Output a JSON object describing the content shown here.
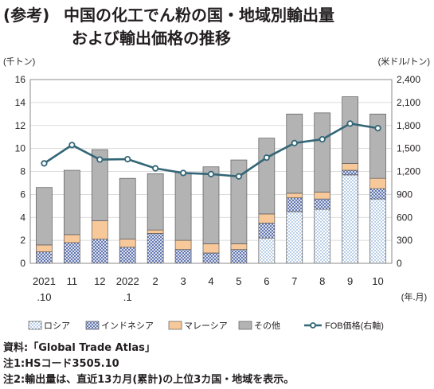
{
  "header": {
    "label": "(参考)",
    "title": "中国の化工でん粉の国・地域別輸出量",
    "subtitle": "および輸出価格の推移"
  },
  "chart_data": {
    "type": "bar",
    "stacked": true,
    "categories": [
      "2021 .10",
      "11",
      "12",
      "2022 .1",
      "2",
      "3",
      "4",
      "5",
      "6",
      "7",
      "8",
      "9",
      "10"
    ],
    "x_tick_labels": [
      {
        "top": "2021",
        "bottom": ".10"
      },
      {
        "top": "11",
        "bottom": ""
      },
      {
        "top": "12",
        "bottom": ""
      },
      {
        "top": "2022",
        "bottom": ".1"
      },
      {
        "top": "2",
        "bottom": ""
      },
      {
        "top": "3",
        "bottom": ""
      },
      {
        "top": "4",
        "bottom": ""
      },
      {
        "top": "5",
        "bottom": ""
      },
      {
        "top": "6",
        "bottom": ""
      },
      {
        "top": "7",
        "bottom": ""
      },
      {
        "top": "8",
        "bottom": ""
      },
      {
        "top": "9",
        "bottom": ""
      },
      {
        "top": "10",
        "bottom": ""
      }
    ],
    "xlabel": "(年.月)",
    "ylabel_left": "(千トン)",
    "ylabel_right": "(米ドル/トン)",
    "ylim_left": [
      0,
      16
    ],
    "yticks_left": [
      "0",
      "2",
      "4",
      "6",
      "8",
      "10",
      "12",
      "14",
      "16"
    ],
    "ylim_right": [
      0,
      2400
    ],
    "yticks_right": [
      "0",
      "300",
      "600",
      "900",
      "1,200",
      "1,500",
      "1,800",
      "2,100",
      "2,400"
    ],
    "grid": true,
    "legend_position": "bottom",
    "series": [
      {
        "name": "ロシア",
        "pattern": "dots",
        "color": "#5a8fc8",
        "values": [
          0.0,
          0.0,
          0.0,
          0.0,
          0.0,
          0.0,
          0.0,
          0.0,
          2.2,
          4.5,
          4.7,
          7.7,
          5.6
        ]
      },
      {
        "name": "インドネシア",
        "pattern": "crosshatch",
        "color": "#5068a8",
        "values": [
          1.0,
          1.8,
          2.1,
          1.4,
          2.6,
          1.2,
          0.9,
          1.2,
          1.3,
          1.2,
          0.9,
          0.4,
          0.9
        ]
      },
      {
        "name": "マレーシア",
        "pattern": "solid",
        "color": "#f7c89a",
        "values": [
          0.6,
          0.7,
          1.6,
          0.7,
          0.3,
          0.8,
          0.8,
          0.5,
          0.8,
          0.4,
          0.6,
          0.6,
          0.9
        ]
      },
      {
        "name": "その他",
        "pattern": "solid",
        "color": "#b3b3b3",
        "values": [
          5.0,
          5.6,
          6.2,
          5.3,
          4.9,
          5.9,
          6.7,
          7.3,
          6.6,
          6.9,
          6.9,
          5.8,
          5.6
        ]
      },
      {
        "name": "FOB価格(右軸)",
        "type": "line",
        "axis": "right",
        "color": "#336677",
        "values": [
          1305,
          1545,
          1355,
          1360,
          1240,
          1180,
          1165,
          1135,
          1380,
          1570,
          1620,
          1825,
          1765
        ]
      }
    ]
  },
  "notes": [
    "資料:「Global Trade Atlas」",
    "注1:HSコード3505.10",
    "注2:輸出量は、直近13カ月(累計)の上位3カ国・地域を表示。"
  ]
}
